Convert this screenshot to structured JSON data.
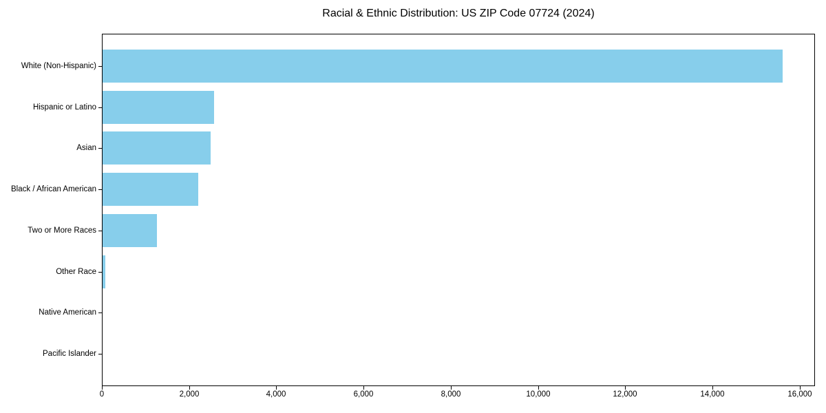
{
  "chart_data": {
    "type": "bar",
    "orientation": "horizontal",
    "title": "Racial & Ethnic Distribution: US ZIP Code 07724 (2024)",
    "categories": [
      "White (Non-Hispanic)",
      "Hispanic or Latino",
      "Asian",
      "Black / African American",
      "Two or More Races",
      "Other Race",
      "Native American",
      "Pacific Islander"
    ],
    "values": [
      15600,
      2550,
      2480,
      2190,
      1250,
      60,
      0,
      0
    ],
    "xlabel": "",
    "ylabel": "",
    "xlim": [
      0,
      16350
    ],
    "x_ticks": [
      0,
      2000,
      4000,
      6000,
      8000,
      10000,
      12000,
      14000,
      16000
    ],
    "x_tick_labels": [
      "0",
      "2,000",
      "4,000",
      "6,000",
      "8,000",
      "10,000",
      "12,000",
      "14,000",
      "16,000"
    ],
    "bar_color": "#87CEEB",
    "grid": false,
    "legend_position": "none"
  }
}
